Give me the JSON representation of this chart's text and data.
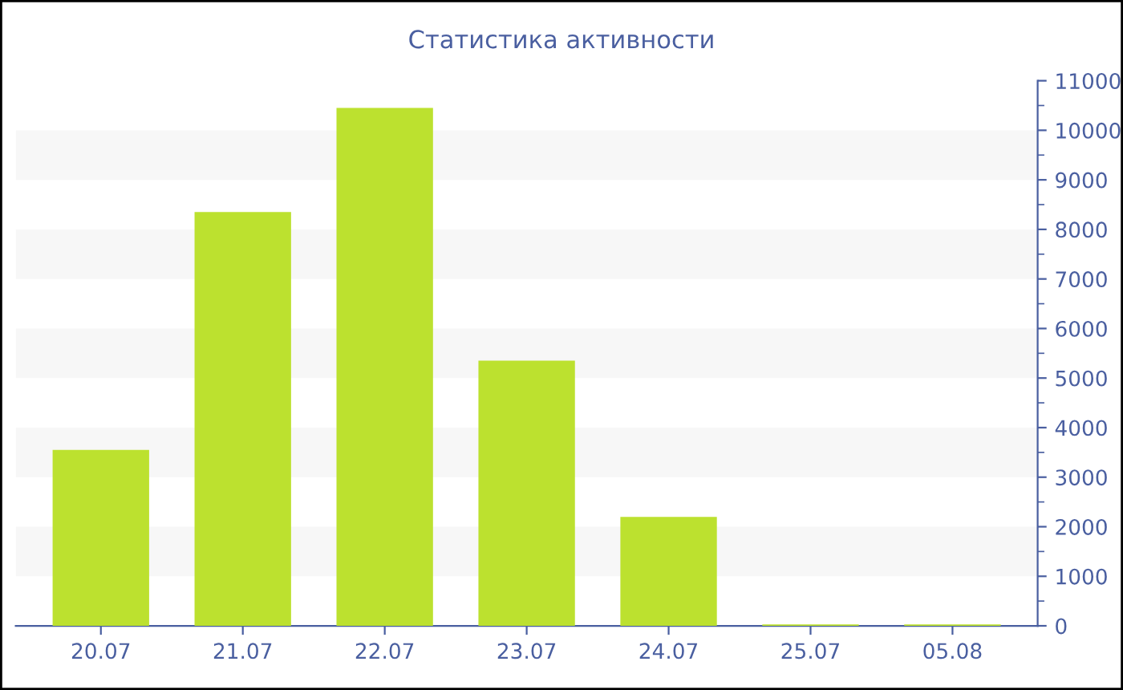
{
  "chart_data": {
    "type": "bar",
    "title": "Статистика активности",
    "categories": [
      "20.07",
      "21.07",
      "22.07",
      "23.07",
      "24.07",
      "25.07",
      "05.08"
    ],
    "values": [
      3550,
      8350,
      10450,
      5350,
      2200,
      30,
      30
    ],
    "color": "#bce12f",
    "ylim": [
      0,
      11000
    ],
    "yticks": [
      0,
      1000,
      2000,
      3000,
      4000,
      5000,
      6000,
      7000,
      8000,
      9000,
      10000,
      11000
    ],
    "bands": [
      {
        "axis": "y",
        "from": 1000,
        "to": 2000,
        "color": "#f7f7f7"
      },
      {
        "axis": "y",
        "from": 3000,
        "to": 4000,
        "color": "#f7f7f7"
      },
      {
        "axis": "y",
        "from": 5000,
        "to": 6000,
        "color": "#f7f7f7"
      },
      {
        "axis": "y",
        "from": 7000,
        "to": 8000,
        "color": "#f7f7f7"
      },
      {
        "axis": "y",
        "from": 9000,
        "to": 10000,
        "color": "#f7f7f7"
      }
    ]
  }
}
